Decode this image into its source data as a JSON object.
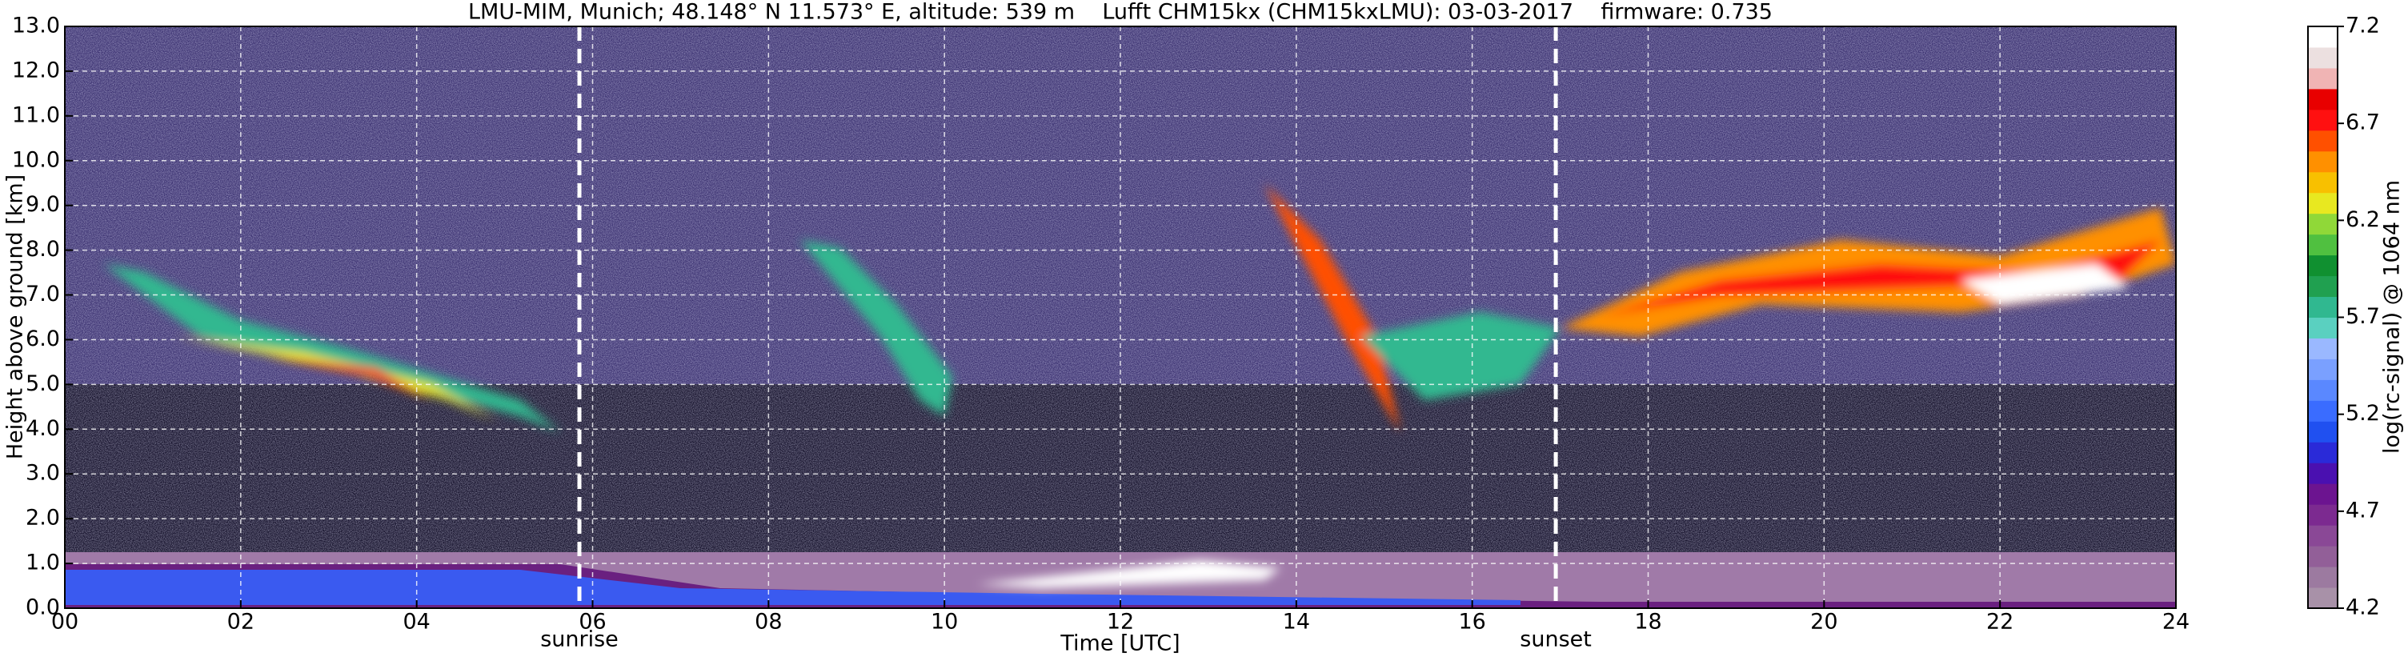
{
  "chart_data": {
    "type": "heatmap",
    "title": "LMU-MIM, Munich; 48.148° N 11.573° E, altitude: 539 m    Lufft CHM15kx (CHM15kxLMU): 03-03-2017    firmware: 0.735",
    "xlabel": "Time [UTC]",
    "ylabel": "Height above ground [km]",
    "xlim": [
      0,
      24
    ],
    "xticks": [
      {
        "value": 0,
        "label": "00"
      },
      {
        "value": 2,
        "label": "02"
      },
      {
        "value": 4,
        "label": "04"
      },
      {
        "value": 6,
        "label": "06"
      },
      {
        "value": 8,
        "label": "08"
      },
      {
        "value": 10,
        "label": "10"
      },
      {
        "value": 12,
        "label": "12"
      },
      {
        "value": 14,
        "label": "14"
      },
      {
        "value": 16,
        "label": "16"
      },
      {
        "value": 18,
        "label": "18"
      },
      {
        "value": 20,
        "label": "20"
      },
      {
        "value": 22,
        "label": "22"
      },
      {
        "value": 24,
        "label": "24"
      }
    ],
    "ylim": [
      0,
      13
    ],
    "yticks": [
      {
        "value": 0,
        "label": "0.0"
      },
      {
        "value": 1,
        "label": "1.0"
      },
      {
        "value": 2,
        "label": "2.0"
      },
      {
        "value": 3,
        "label": "3.0"
      },
      {
        "value": 4,
        "label": "4.0"
      },
      {
        "value": 5,
        "label": "5.0"
      },
      {
        "value": 6,
        "label": "6.0"
      },
      {
        "value": 7,
        "label": "7.0"
      },
      {
        "value": 8,
        "label": "8.0"
      },
      {
        "value": 9,
        "label": "9.0"
      },
      {
        "value": 10,
        "label": "10.0"
      },
      {
        "value": 11,
        "label": "11.0"
      },
      {
        "value": 12,
        "label": "12.0"
      },
      {
        "value": 13,
        "label": "13.0"
      }
    ],
    "grid": true,
    "annotations": [
      {
        "label": "sunrise",
        "x": 5.85
      },
      {
        "label": "sunset",
        "x": 16.95
      }
    ],
    "colorbar": {
      "label": "log(rc-signal) @ 1064 nm",
      "lim": [
        4.2,
        7.2
      ],
      "ticks": [
        4.2,
        4.7,
        5.2,
        5.7,
        6.2,
        6.7,
        7.2
      ],
      "colors": [
        "#a891a8",
        "#9c7aa0",
        "#925f98",
        "#8a4896",
        "#7c2a90",
        "#6c1490",
        "#4a10b0",
        "#2a2ad8",
        "#2050f0",
        "#3a6cff",
        "#5a88ff",
        "#7aa0ff",
        "#9ab8ff",
        "#5ad0c0",
        "#30b890",
        "#20a050",
        "#109030",
        "#50c040",
        "#90d838",
        "#e8e820",
        "#f8c000",
        "#ff9000",
        "#ff5000",
        "#ff1010",
        "#e80000",
        "#f0b4b4",
        "#ece0e0",
        "#ffffff"
      ]
    }
  }
}
